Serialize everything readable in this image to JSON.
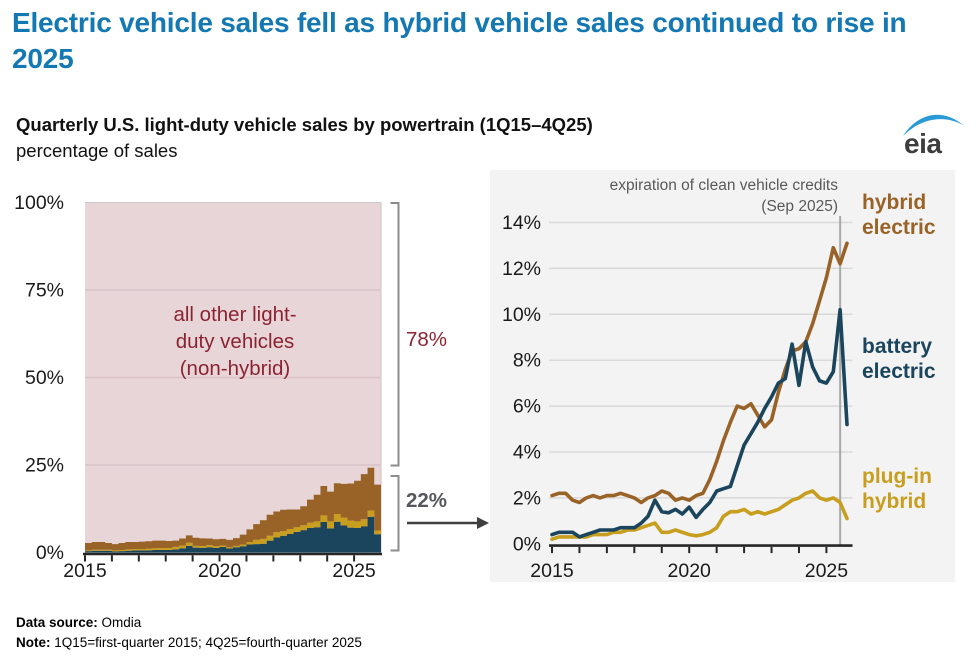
{
  "page": {
    "title": "Electric vehicle sales fell as hybrid vehicle sales continued to rise in 2025",
    "subtitle": "Quarterly U.S. light-duty vehicle sales by powertrain (1Q15–4Q25)",
    "units_line": "percentage of sales",
    "logo_text": "eia",
    "footer": {
      "source_label": "Data source:",
      "source_value": " Omdia",
      "note_label": "Note:",
      "note_value": " 1Q15=first-quarter 2015; 4Q25=fourth-quarter 2025"
    }
  },
  "colors": {
    "title_blue": "#1478b3",
    "hybrid_brown": "#996327",
    "battery_navy": "#1b455c",
    "plugin_gold": "#c89e1e",
    "other_pink": "#e7d5d7",
    "other_text_red": "#8c2332",
    "panel_gray": "#f3f3f3",
    "gridline_gray": "#d9d9d9",
    "pink_gridline": "#d9c4c8",
    "axis_dark": "#262626",
    "tick_label": "#1a1a1a",
    "annotation_gray": "#595959",
    "bracket_gray": "#8c8c8c",
    "arrow_dark": "#3f3f3f",
    "ref_line_gray": "#a9a9a9",
    "logo_blue": "#2a9ad7",
    "logo_text_gray": "#3d3d3d"
  },
  "chart_data": [
    {
      "type": "area",
      "description": "stacked quarterly share of U.S. light-duty vehicle sales",
      "x_unit": "quarter",
      "x_range": [
        "1Q15",
        "4Q25"
      ],
      "x_tick_labels": [
        "2015",
        "2020",
        "2025"
      ],
      "x_minor_tick_years": [
        2015,
        2016,
        2017,
        2018,
        2019,
        2020,
        2021,
        2022,
        2023,
        2024,
        2025
      ],
      "y_tick_labels": [
        "0%",
        "25%",
        "50%",
        "75%",
        "100%"
      ],
      "ylim": [
        0,
        100
      ],
      "grid": true,
      "stack_order": "bottom to top",
      "series": [
        {
          "name": "battery electric",
          "color": "#1b455c",
          "values": [
            0.4,
            0.5,
            0.5,
            0.5,
            0.3,
            0.4,
            0.5,
            0.6,
            0.6,
            0.6,
            0.7,
            0.7,
            0.7,
            0.9,
            1.2,
            1.9,
            1.4,
            1.35,
            1.5,
            1.3,
            1.6,
            1.15,
            1.5,
            1.8,
            2.3,
            2.4,
            2.5,
            3.4,
            4.3,
            4.8,
            5.3,
            5.9,
            6.4,
            7.0,
            7.2,
            8.7,
            6.9,
            8.8,
            7.7,
            7.1,
            7.0,
            7.5,
            10.2,
            5.2
          ]
        },
        {
          "name": "plug-in hybrid",
          "color": "#c89e1e",
          "values": [
            0.2,
            0.3,
            0.3,
            0.3,
            0.3,
            0.3,
            0.4,
            0.4,
            0.4,
            0.5,
            0.5,
            0.6,
            0.6,
            0.7,
            0.8,
            0.9,
            0.5,
            0.5,
            0.6,
            0.5,
            0.4,
            0.35,
            0.4,
            0.5,
            0.7,
            1.2,
            1.4,
            1.4,
            1.5,
            1.3,
            1.4,
            1.3,
            1.4,
            1.5,
            1.7,
            1.9,
            2.0,
            2.2,
            2.3,
            2.0,
            1.9,
            2.0,
            1.8,
            1.1
          ]
        },
        {
          "name": "hybrid electric",
          "color": "#996327",
          "values": [
            2.1,
            2.2,
            2.2,
            1.9,
            1.8,
            2.0,
            2.1,
            2.0,
            2.1,
            2.1,
            2.2,
            2.1,
            2.0,
            1.8,
            2.0,
            2.1,
            2.3,
            2.2,
            1.9,
            2.0,
            1.9,
            2.1,
            2.2,
            2.8,
            3.6,
            4.5,
            5.3,
            6.0,
            5.9,
            6.1,
            5.6,
            5.1,
            5.4,
            6.6,
            7.6,
            8.4,
            8.5,
            8.8,
            9.6,
            10.6,
            11.6,
            12.9,
            12.2,
            13.1
          ]
        }
      ],
      "remainder": {
        "label": "all other light-\nduty vehicles\n(non-hybrid)",
        "share_label": "78%",
        "color": "#e7d5d7",
        "text_color": "#8c2332"
      },
      "ev_stack": {
        "share_label": "22%"
      }
    },
    {
      "type": "line",
      "description": "quarterly share of U.S. light-duty vehicle sales by electric powertrain",
      "x_unit": "quarter",
      "x_range": [
        "1Q15",
        "4Q25"
      ],
      "x_tick_labels": [
        "2015",
        "2020",
        "2025"
      ],
      "x_minor_tick_years": [
        2015,
        2016,
        2017,
        2018,
        2019,
        2020,
        2021,
        2022,
        2023,
        2024,
        2025
      ],
      "y_tick_labels": [
        "0%",
        "2%",
        "4%",
        "6%",
        "8%",
        "10%",
        "12%",
        "14%"
      ],
      "ylim": [
        0,
        14
      ],
      "grid": true,
      "legend_position": "right",
      "annotation": {
        "line1": "expiration of clean vehicle credits",
        "line2": "(Sep 2025)",
        "x": "3Q25"
      },
      "series": [
        {
          "name": "plug-in hybrid",
          "color": "#c89e1e",
          "values": [
            0.2,
            0.3,
            0.3,
            0.3,
            0.3,
            0.3,
            0.4,
            0.4,
            0.4,
            0.5,
            0.5,
            0.6,
            0.6,
            0.7,
            0.8,
            0.9,
            0.5,
            0.5,
            0.6,
            0.5,
            0.4,
            0.35,
            0.4,
            0.5,
            0.7,
            1.2,
            1.4,
            1.4,
            1.5,
            1.3,
            1.4,
            1.3,
            1.4,
            1.5,
            1.7,
            1.9,
            2.0,
            2.2,
            2.3,
            2.0,
            1.9,
            2.0,
            1.8,
            1.1
          ]
        },
        {
          "name": "hybrid electric",
          "color": "#996327",
          "values": [
            2.1,
            2.2,
            2.2,
            1.9,
            1.8,
            2.0,
            2.1,
            2.0,
            2.1,
            2.1,
            2.2,
            2.1,
            2.0,
            1.8,
            2.0,
            2.1,
            2.3,
            2.2,
            1.9,
            2.0,
            1.9,
            2.1,
            2.2,
            2.8,
            3.6,
            4.5,
            5.3,
            6.0,
            5.9,
            6.1,
            5.6,
            5.1,
            5.4,
            6.6,
            7.6,
            8.4,
            8.5,
            8.8,
            9.6,
            10.6,
            11.6,
            12.9,
            12.2,
            13.1
          ]
        },
        {
          "name": "battery electric",
          "color": "#1b455c",
          "values": [
            0.4,
            0.5,
            0.5,
            0.5,
            0.3,
            0.4,
            0.5,
            0.6,
            0.6,
            0.6,
            0.7,
            0.7,
            0.7,
            0.9,
            1.2,
            1.9,
            1.4,
            1.35,
            1.5,
            1.3,
            1.6,
            1.15,
            1.5,
            1.8,
            2.3,
            2.4,
            2.5,
            3.4,
            4.3,
            4.8,
            5.3,
            5.9,
            6.4,
            7.0,
            7.2,
            8.7,
            6.9,
            8.8,
            7.7,
            7.1,
            7.0,
            7.5,
            10.2,
            5.2
          ]
        }
      ]
    }
  ]
}
